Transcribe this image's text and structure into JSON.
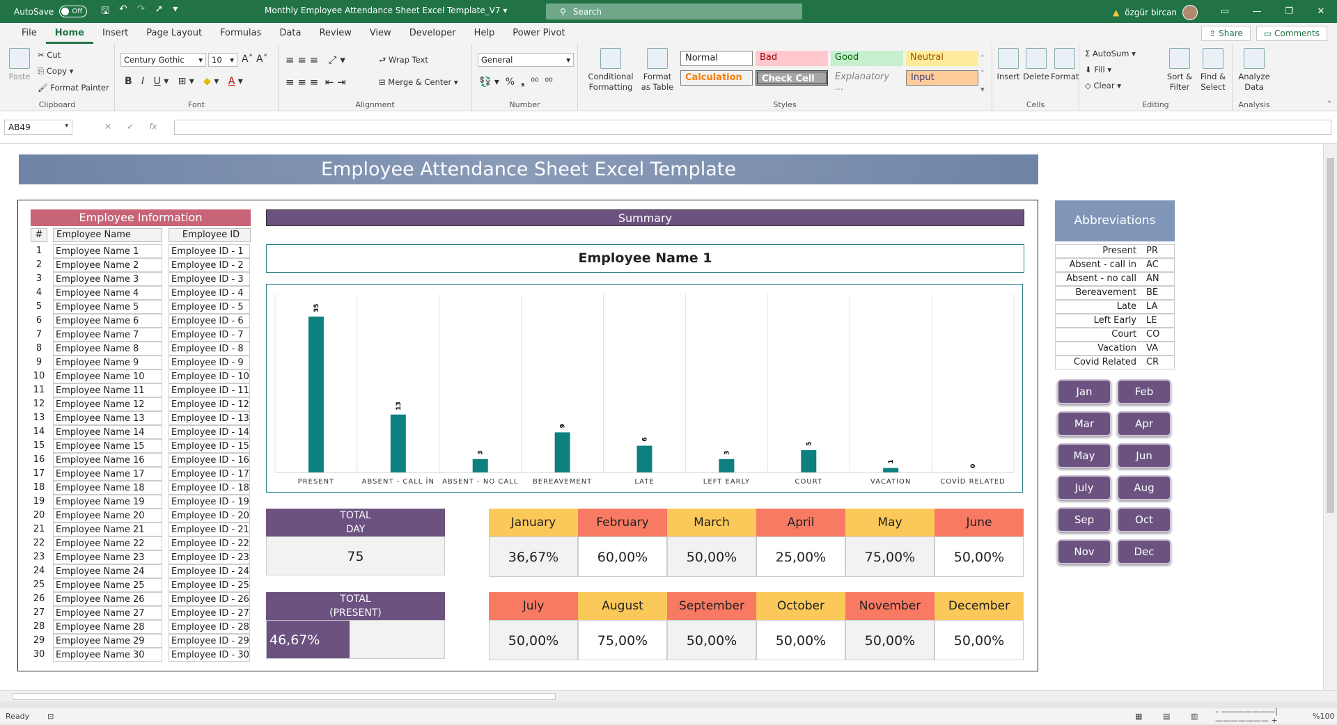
{
  "titlebar": {
    "autosave": "AutoSave",
    "toggle": "Off",
    "doc_title": "Monthly Employee Attendance Sheet Excel Template_V7",
    "search": "Search",
    "user": "özgür bircan"
  },
  "menu": [
    "File",
    "Home",
    "Insert",
    "Page Layout",
    "Formulas",
    "Data",
    "Review",
    "View",
    "Developer",
    "Help",
    "Power Pivot"
  ],
  "share": "Share",
  "comments": "Comments",
  "ribbon": {
    "clipboard": {
      "label": "Clipboard",
      "paste": "Paste",
      "cut": "Cut",
      "copy": "Copy",
      "format_painter": "Format Painter"
    },
    "font": {
      "label": "Font",
      "name": "Century Gothic",
      "size": "10"
    },
    "alignment": {
      "label": "Alignment",
      "wrap": "Wrap Text",
      "merge": "Merge & Center"
    },
    "number": {
      "label": "Number",
      "format": "General"
    },
    "styles": {
      "label": "Styles",
      "conditional": "Conditional Formatting",
      "format_table": "Format as Table",
      "normal": "Normal",
      "bad": "Bad",
      "good": "Good",
      "neutral": "Neutral",
      "calculation": "Calculation",
      "check_cell": "Check Cell",
      "explanatory": "Explanatory ...",
      "input": "Input"
    },
    "cells": {
      "label": "Cells",
      "insert": "Insert",
      "delete": "Delete",
      "format": "Format"
    },
    "editing": {
      "label": "Editing",
      "autosum": "AutoSum",
      "fill": "Fill",
      "clear": "Clear",
      "sort": "Sort & Filter",
      "find": "Find & Select"
    },
    "analysis": {
      "label": "Analysis",
      "analyze": "Analyze Data"
    }
  },
  "namebox": "AB49",
  "sheet": {
    "title": "Employee Attendance Sheet Excel Template",
    "emp_info": "Employee Information",
    "col_num": "#",
    "col_name": "Employee Name",
    "col_id": "Employee ID",
    "employees": [
      [
        "1",
        "Employee Name 1",
        "Employee ID - 1"
      ],
      [
        "2",
        "Employee Name 2",
        "Employee ID - 2"
      ],
      [
        "3",
        "Employee Name 3",
        "Employee ID - 3"
      ],
      [
        "4",
        "Employee Name 4",
        "Employee ID - 4"
      ],
      [
        "5",
        "Employee Name 5",
        "Employee ID - 5"
      ],
      [
        "6",
        "Employee Name 6",
        "Employee ID - 6"
      ],
      [
        "7",
        "Employee Name 7",
        "Employee ID - 7"
      ],
      [
        "8",
        "Employee Name 8",
        "Employee ID - 8"
      ],
      [
        "9",
        "Employee Name 9",
        "Employee ID - 9"
      ],
      [
        "10",
        "Employee Name 10",
        "Employee ID - 10"
      ],
      [
        "11",
        "Employee Name 11",
        "Employee ID - 11"
      ],
      [
        "12",
        "Employee Name 12",
        "Employee ID - 12"
      ],
      [
        "13",
        "Employee Name 13",
        "Employee ID - 13"
      ],
      [
        "14",
        "Employee Name 14",
        "Employee ID - 14"
      ],
      [
        "15",
        "Employee Name 15",
        "Employee ID - 15"
      ],
      [
        "16",
        "Employee Name 16",
        "Employee ID - 16"
      ],
      [
        "17",
        "Employee Name 17",
        "Employee ID - 17"
      ],
      [
        "18",
        "Employee Name 18",
        "Employee ID - 18"
      ],
      [
        "19",
        "Employee Name 19",
        "Employee ID - 19"
      ],
      [
        "20",
        "Employee Name 20",
        "Employee ID - 20"
      ],
      [
        "21",
        "Employee Name 21",
        "Employee ID - 21"
      ],
      [
        "22",
        "Employee Name 22",
        "Employee ID - 22"
      ],
      [
        "23",
        "Employee Name 23",
        "Employee ID - 23"
      ],
      [
        "24",
        "Employee Name 24",
        "Employee ID - 24"
      ],
      [
        "25",
        "Employee Name 25",
        "Employee ID - 25"
      ],
      [
        "26",
        "Employee Name 26",
        "Employee ID - 26"
      ],
      [
        "27",
        "Employee Name 27",
        "Employee ID - 27"
      ],
      [
        "28",
        "Employee Name 28",
        "Employee ID - 28"
      ],
      [
        "29",
        "Employee Name 29",
        "Employee ID - 29"
      ],
      [
        "30",
        "Employee Name 30",
        "Employee ID - 30"
      ]
    ],
    "summary": "Summary",
    "selected_employee": "Employee Name 1",
    "total_day_label": "TOTAL DAY",
    "total_day": "75",
    "total_present_label": "TOTAL (PRESENT)",
    "total_present": "46,67%",
    "total_present_fraction": 0.4667,
    "months": [
      {
        "name": "January",
        "value": "36,67%",
        "color": "#fbc85a"
      },
      {
        "name": "February",
        "value": "60,00%",
        "color": "#f97a63"
      },
      {
        "name": "March",
        "value": "50,00%",
        "color": "#fbc85a"
      },
      {
        "name": "April",
        "value": "25,00%",
        "color": "#f97a63"
      },
      {
        "name": "May",
        "value": "75,00%",
        "color": "#fbc85a"
      },
      {
        "name": "June",
        "value": "50,00%",
        "color": "#f97a63"
      },
      {
        "name": "July",
        "value": "50,00%",
        "color": "#f97a63"
      },
      {
        "name": "August",
        "value": "75,00%",
        "color": "#fbc85a"
      },
      {
        "name": "September",
        "value": "50,00%",
        "color": "#f97a63"
      },
      {
        "name": "October",
        "value": "50,00%",
        "color": "#fbc85a"
      },
      {
        "name": "November",
        "value": "50,00%",
        "color": "#f97a63"
      },
      {
        "name": "December",
        "value": "50,00%",
        "color": "#fbc85a"
      }
    ],
    "abbr_title": "Abbreviations",
    "abbreviations": [
      [
        "Present",
        "PR"
      ],
      [
        "Absent - call in",
        "AC"
      ],
      [
        "Absent - no call",
        "AN"
      ],
      [
        "Bereavement",
        "BE"
      ],
      [
        "Late",
        "LA"
      ],
      [
        "Left Early",
        "LE"
      ],
      [
        "Court",
        "CO"
      ],
      [
        "Vacation",
        "VA"
      ],
      [
        "Covid Related",
        "CR"
      ]
    ],
    "month_buttons": [
      "Jan",
      "Feb",
      "Mar",
      "Apr",
      "May",
      "Jun",
      "July",
      "Aug",
      "Sep",
      "Oct",
      "Nov",
      "Dec"
    ]
  },
  "chart_data": {
    "type": "bar",
    "categories": [
      "PRESENT",
      "ABSENT - CALL İN",
      "ABSENT - NO CALL",
      "BEREAVEMENT",
      "LATE",
      "LEFT EARLY",
      "COURT",
      "VACATION",
      "COVİD RELATED"
    ],
    "values": [
      35,
      13,
      3,
      9,
      6,
      3,
      5,
      1,
      0
    ],
    "ylim": [
      0,
      40
    ],
    "grid": "vertical",
    "color": "#0e8080"
  },
  "statusbar": {
    "ready": "Ready",
    "zoom": "%100"
  }
}
